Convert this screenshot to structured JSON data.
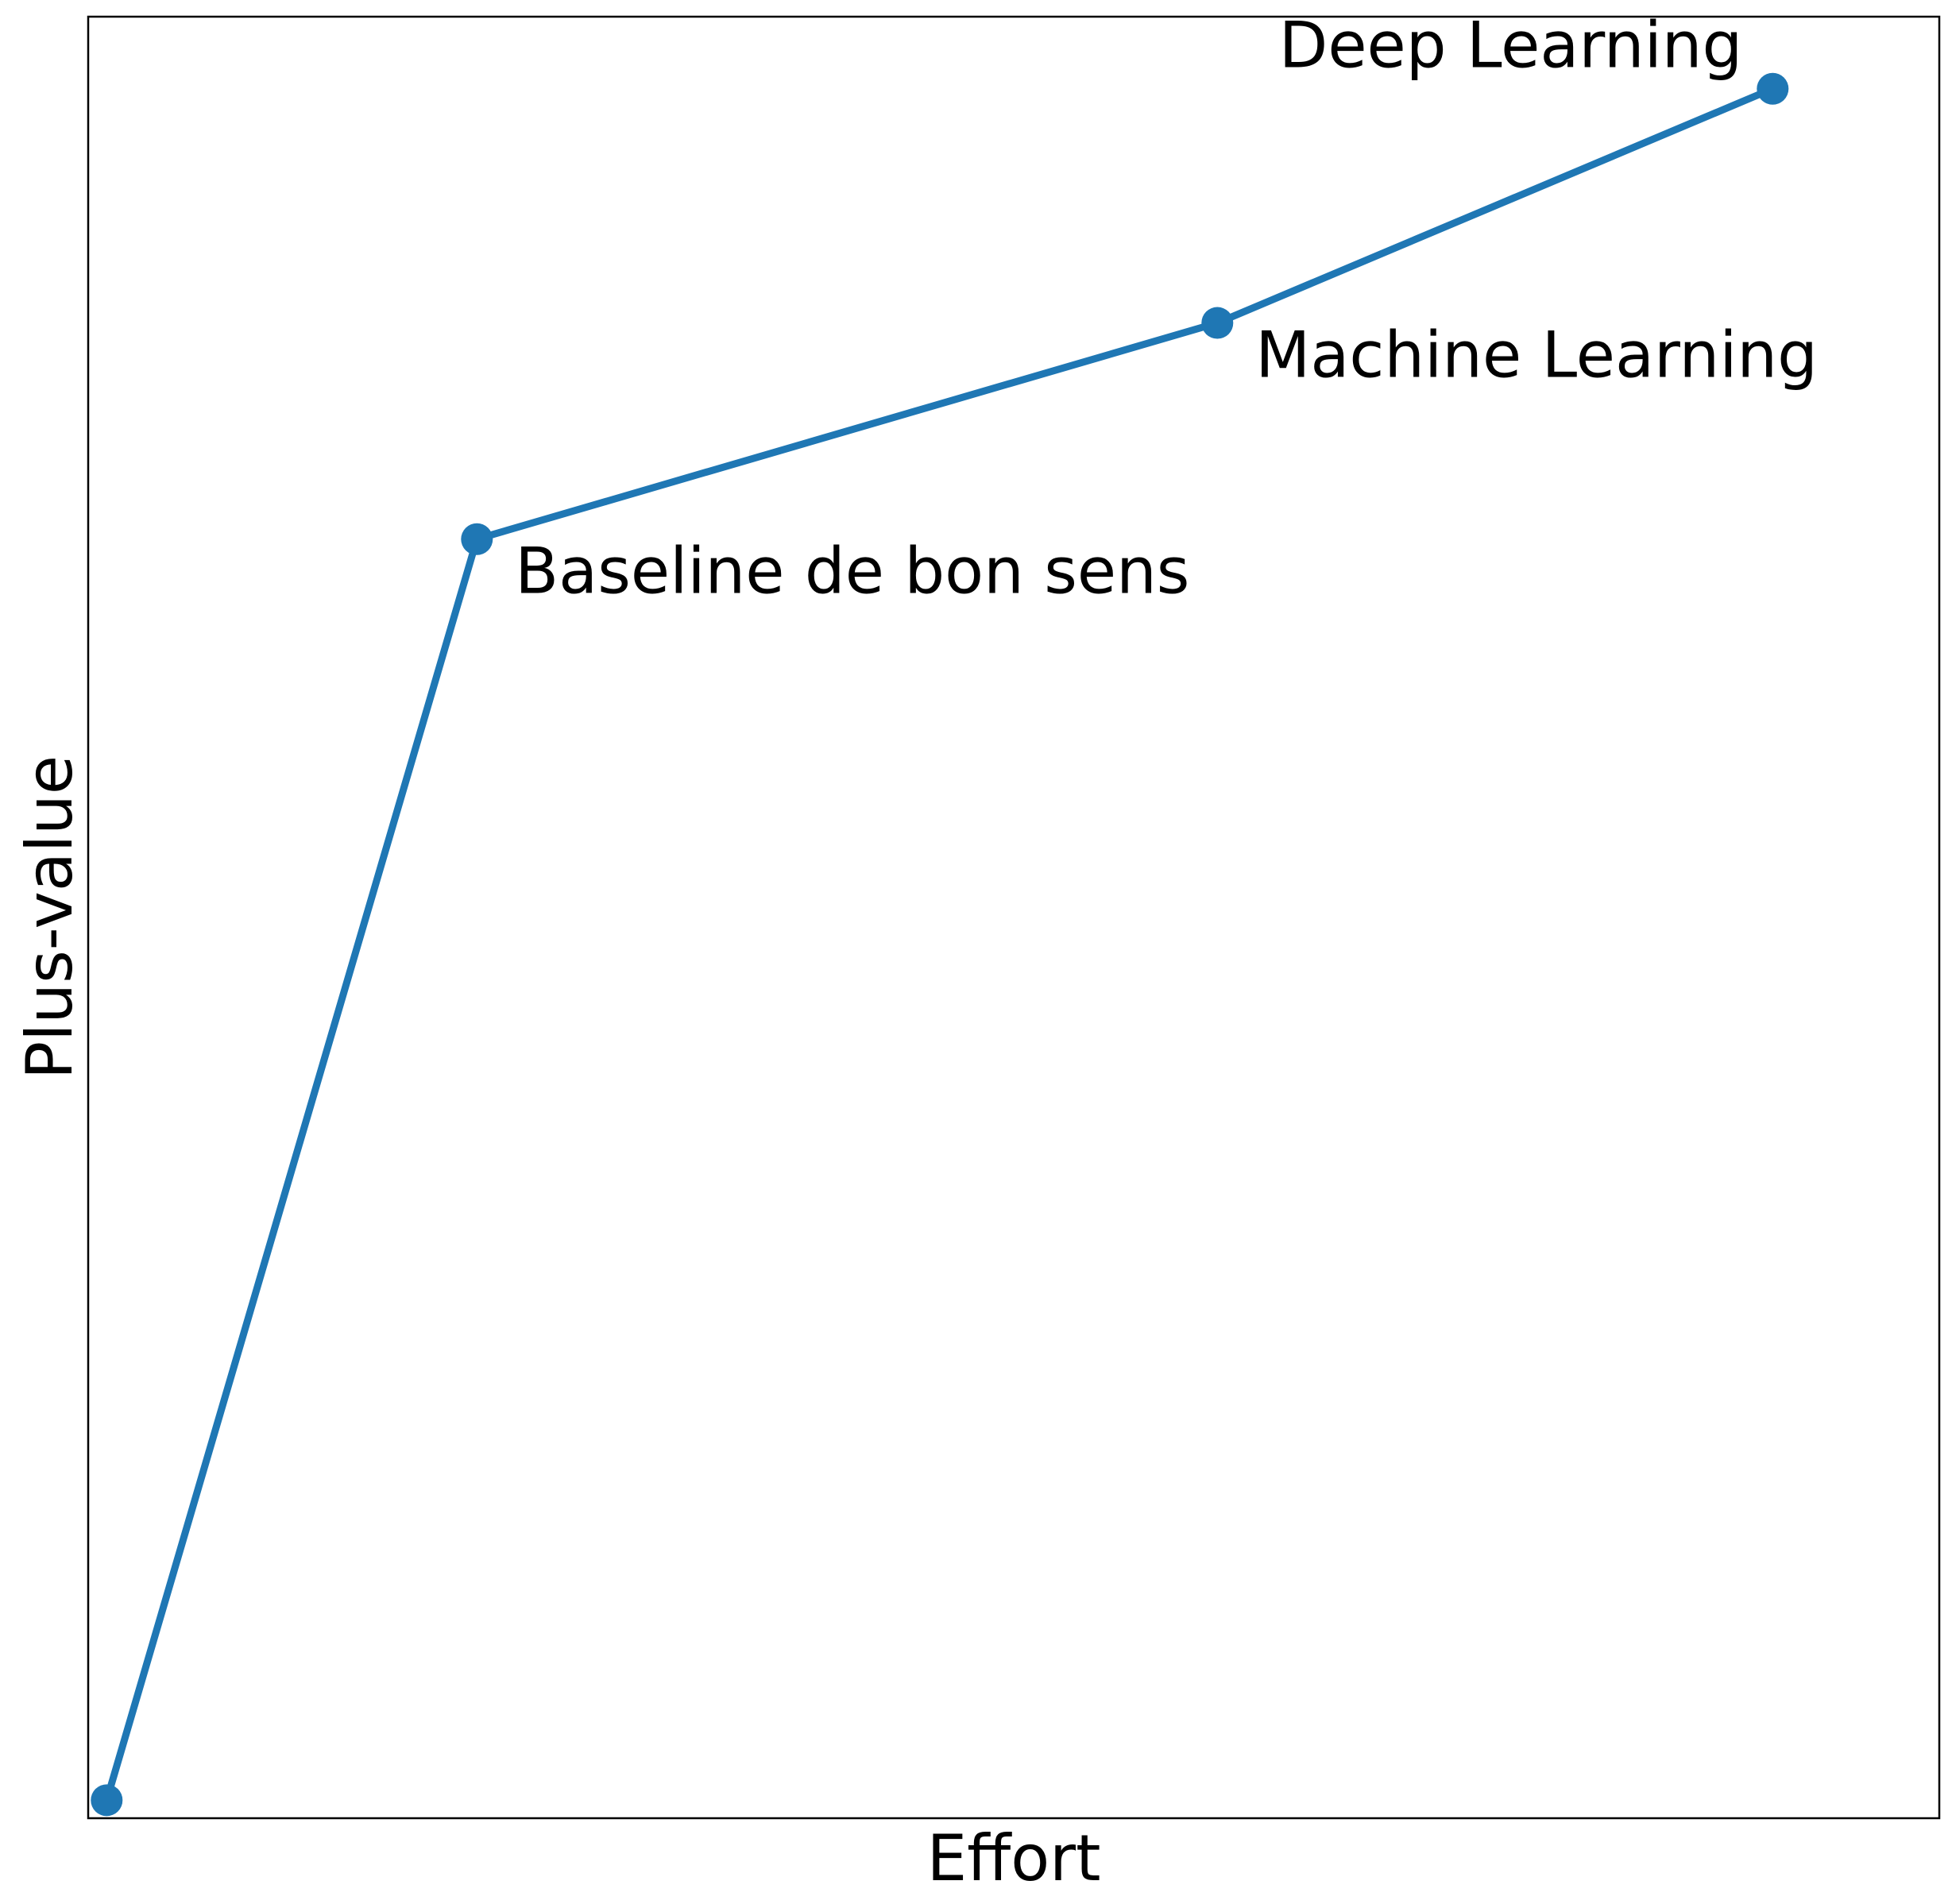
{
  "chart_data": {
    "type": "line",
    "title": "",
    "xlabel": "Effort",
    "ylabel": "Plus-value",
    "xlim": [
      -0.05,
      4.95
    ],
    "ylim": [
      -0.05,
      4.95
    ],
    "x": [
      0,
      1,
      3,
      4.5
    ],
    "series": [
      {
        "values": [
          0,
          3.5,
          4.1,
          4.75
        ],
        "color": "#1f77b4"
      }
    ],
    "annotations": [
      {
        "text": "Baseline de bon sens",
        "x": 1,
        "y": 3.5
      },
      {
        "text": "Machine Learning",
        "x": 3,
        "y": 4.1
      },
      {
        "text": "Deep Learning",
        "x": 4.5,
        "y": 4.75
      }
    ],
    "grid": false,
    "xticks": [],
    "yticks": []
  }
}
